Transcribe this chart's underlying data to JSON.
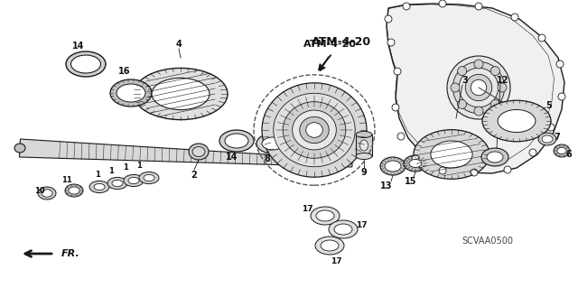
{
  "bg_color": "#ffffff",
  "line_color": "#1a1a1a",
  "label_color": "#111111",
  "atm_label": "ATM-4-20",
  "direction_label": "FR.",
  "watermark": "SCVAA0500",
  "figsize": [
    6.4,
    3.19
  ],
  "dpi": 100
}
